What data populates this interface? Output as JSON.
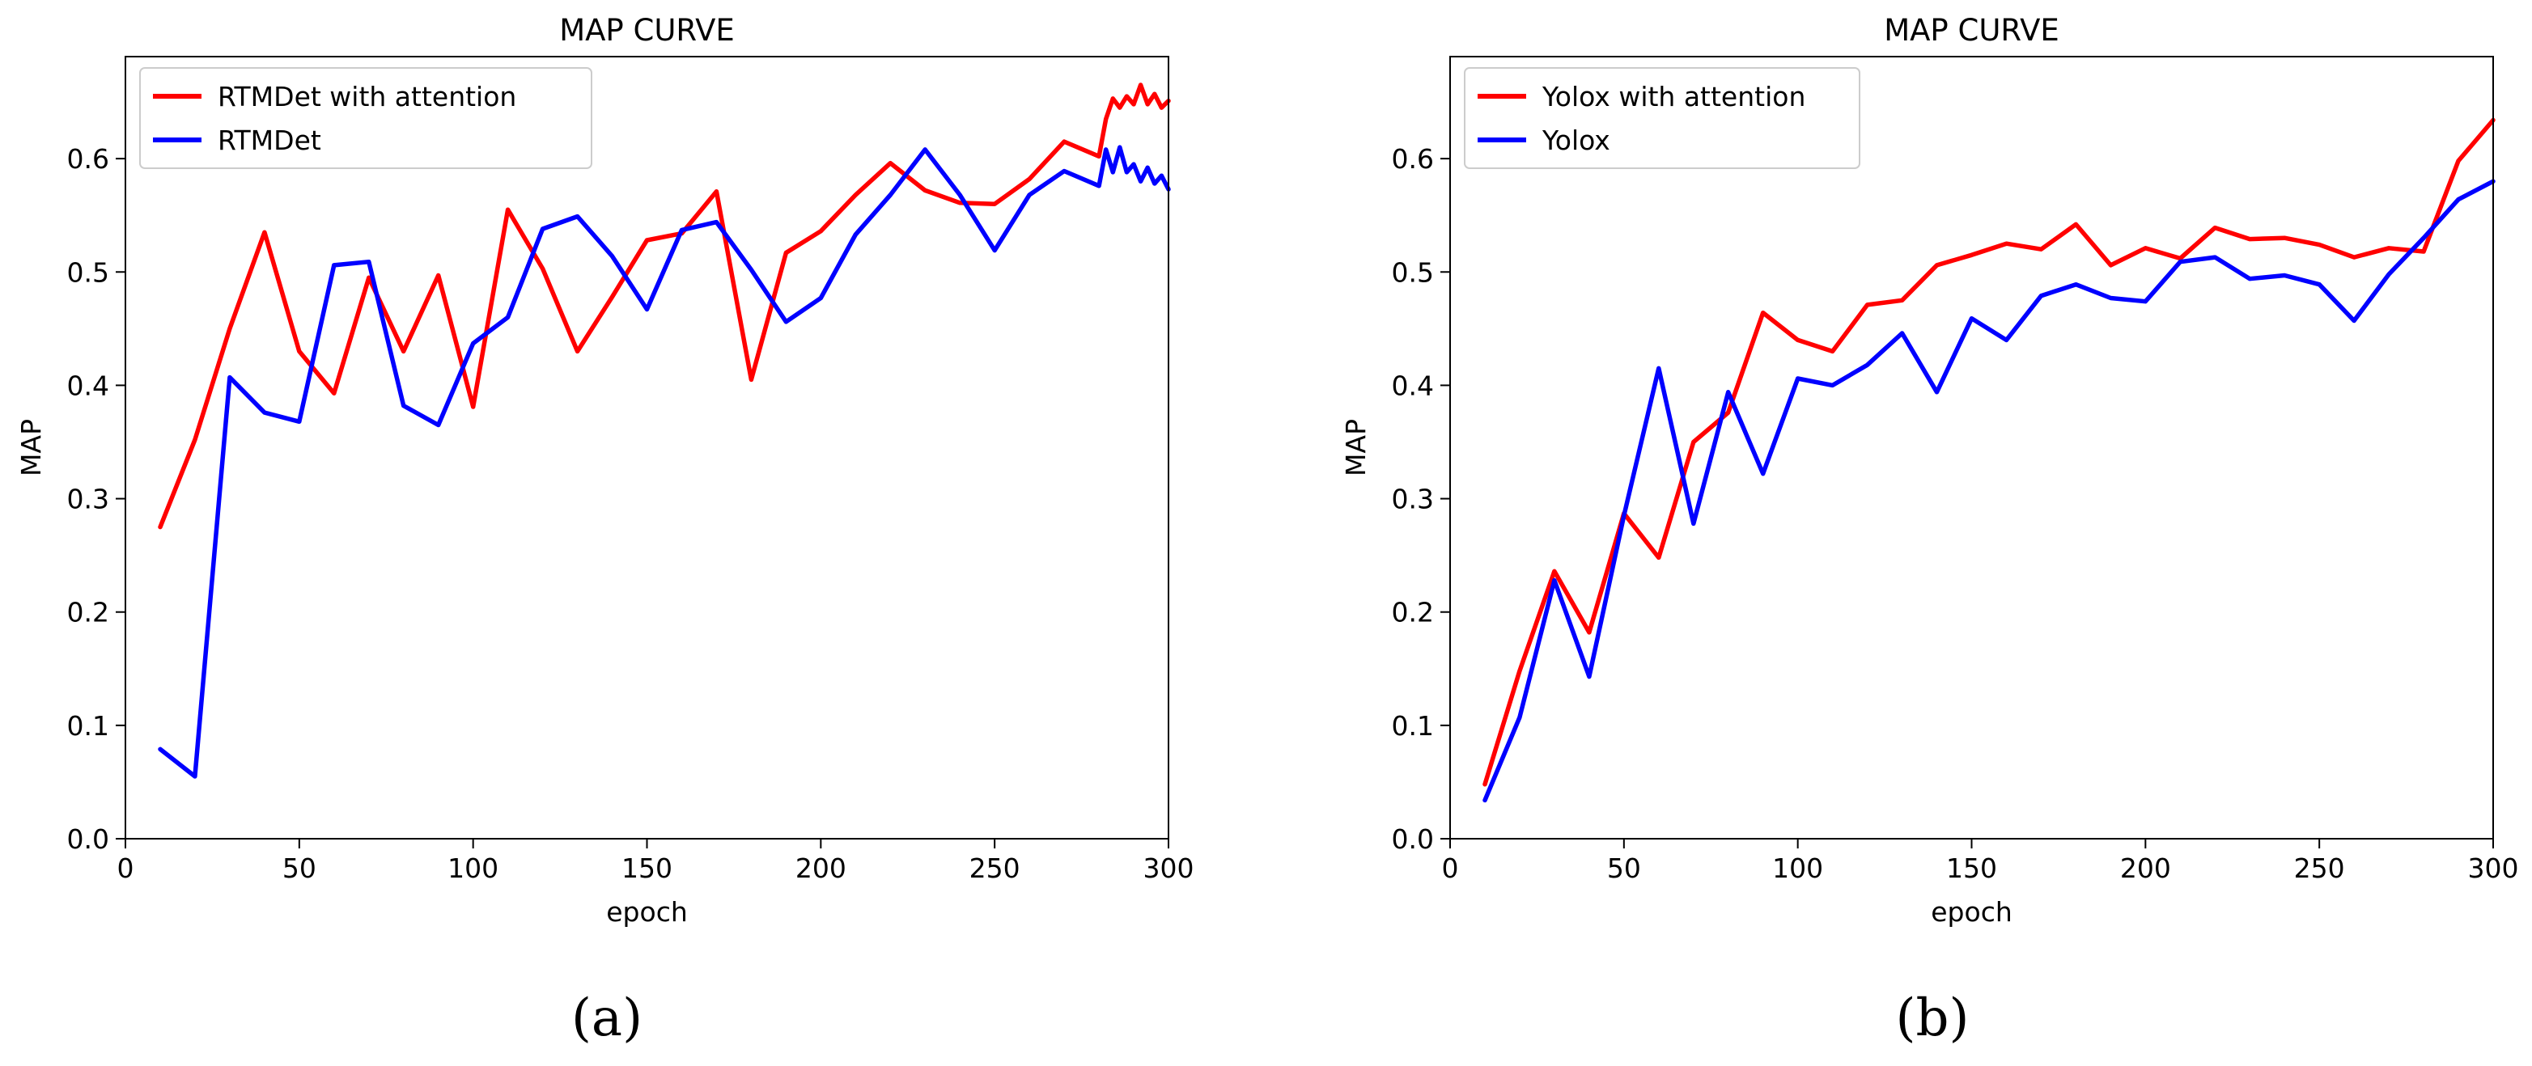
{
  "chart_data": [
    {
      "type": "line",
      "panel_label": "(a)",
      "title": "MAP CURVE",
      "xlabel": "epoch",
      "ylabel": "MAP",
      "xlim": [
        0,
        300
      ],
      "ylim": [
        0,
        0.69
      ],
      "xticks": [
        0,
        50,
        100,
        150,
        200,
        250,
        300
      ],
      "yticks": [
        0.0,
        0.1,
        0.2,
        0.3,
        0.4,
        0.5,
        0.6
      ],
      "grid": false,
      "legend_position": "top-left",
      "series": [
        {
          "name": "RTMDet with attention",
          "color": "#ff0000",
          "x": [
            10,
            20,
            30,
            40,
            50,
            60,
            70,
            80,
            90,
            100,
            110,
            120,
            130,
            140,
            150,
            160,
            170,
            180,
            190,
            200,
            210,
            220,
            230,
            240,
            250,
            260,
            270,
            280,
            282,
            284,
            286,
            288,
            290,
            292,
            294,
            296,
            298,
            300
          ],
          "y": [
            0.275,
            0.352,
            0.45,
            0.535,
            0.43,
            0.393,
            0.495,
            0.43,
            0.497,
            0.381,
            0.555,
            0.503,
            0.43,
            0.478,
            0.528,
            0.534,
            0.571,
            0.405,
            0.517,
            0.536,
            0.568,
            0.596,
            0.572,
            0.561,
            0.56,
            0.582,
            0.615,
            0.602,
            0.635,
            0.653,
            0.645,
            0.655,
            0.648,
            0.665,
            0.648,
            0.657,
            0.645,
            0.651
          ]
        },
        {
          "name": "RTMDet",
          "color": "#0000ff",
          "x": [
            10,
            20,
            30,
            40,
            50,
            60,
            70,
            80,
            90,
            100,
            110,
            120,
            130,
            140,
            150,
            160,
            170,
            180,
            190,
            200,
            210,
            220,
            230,
            240,
            250,
            260,
            270,
            280,
            282,
            284,
            286,
            288,
            290,
            292,
            294,
            296,
            298,
            300
          ],
          "y": [
            0.079,
            0.055,
            0.407,
            0.376,
            0.368,
            0.506,
            0.509,
            0.382,
            0.365,
            0.437,
            0.46,
            0.538,
            0.549,
            0.514,
            0.467,
            0.537,
            0.544,
            0.502,
            0.456,
            0.477,
            0.533,
            0.568,
            0.608,
            0.568,
            0.519,
            0.568,
            0.589,
            0.576,
            0.608,
            0.588,
            0.61,
            0.588,
            0.595,
            0.58,
            0.592,
            0.578,
            0.585,
            0.573
          ]
        }
      ]
    },
    {
      "type": "line",
      "panel_label": "(b)",
      "title": "MAP CURVE",
      "xlabel": "epoch",
      "ylabel": "MAP",
      "xlim": [
        0,
        300
      ],
      "ylim": [
        0,
        0.69
      ],
      "xticks": [
        0,
        50,
        100,
        150,
        200,
        250,
        300
      ],
      "yticks": [
        0.0,
        0.1,
        0.2,
        0.3,
        0.4,
        0.5,
        0.6
      ],
      "grid": false,
      "legend_position": "top-left",
      "series": [
        {
          "name": "Yolox with attention",
          "color": "#ff0000",
          "x": [
            10,
            20,
            30,
            40,
            50,
            60,
            70,
            80,
            90,
            100,
            110,
            120,
            130,
            140,
            150,
            160,
            170,
            180,
            190,
            200,
            210,
            220,
            230,
            240,
            250,
            260,
            270,
            280,
            290,
            300
          ],
          "y": [
            0.048,
            0.148,
            0.236,
            0.182,
            0.287,
            0.248,
            0.35,
            0.376,
            0.464,
            0.44,
            0.43,
            0.471,
            0.475,
            0.506,
            0.515,
            0.525,
            0.52,
            0.542,
            0.506,
            0.521,
            0.512,
            0.539,
            0.529,
            0.53,
            0.524,
            0.513,
            0.521,
            0.518,
            0.598,
            0.634
          ]
        },
        {
          "name": "Yolox",
          "color": "#0000ff",
          "x": [
            10,
            20,
            30,
            40,
            50,
            60,
            70,
            80,
            90,
            100,
            110,
            120,
            130,
            140,
            150,
            160,
            170,
            180,
            190,
            200,
            210,
            220,
            230,
            240,
            250,
            260,
            270,
            280,
            290,
            300
          ],
          "y": [
            0.034,
            0.107,
            0.228,
            0.143,
            0.285,
            0.415,
            0.278,
            0.394,
            0.322,
            0.406,
            0.4,
            0.418,
            0.446,
            0.394,
            0.459,
            0.44,
            0.479,
            0.489,
            0.477,
            0.474,
            0.509,
            0.513,
            0.494,
            0.497,
            0.489,
            0.457,
            0.498,
            0.53,
            0.564,
            0.58
          ]
        }
      ]
    }
  ]
}
